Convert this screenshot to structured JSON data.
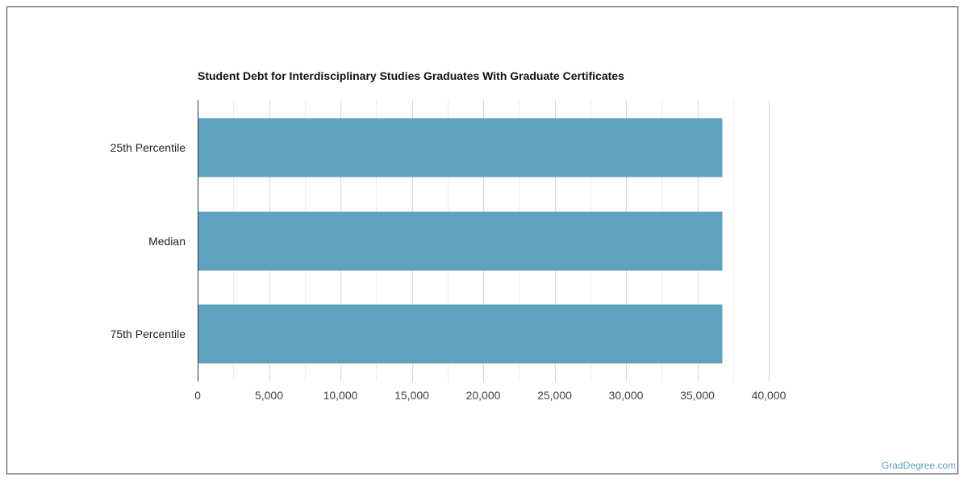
{
  "colors": {
    "bar": "#5ea2bf",
    "grid_major": "#d6d6d6",
    "grid_minor": "#ececec",
    "axis": "#333333",
    "watermark": "#5ea2bf"
  },
  "watermark": "GradDegree.com",
  "chart_data": {
    "type": "bar",
    "orientation": "horizontal",
    "title": "Student Debt for Interdisciplinary Studies Graduates With Graduate Certificates",
    "categories": [
      "25th Percentile",
      "Median",
      "75th Percentile"
    ],
    "values": [
      36750,
      36750,
      36750
    ],
    "xlim": [
      0,
      40000
    ],
    "x_ticks": [
      0,
      5000,
      10000,
      15000,
      20000,
      25000,
      30000,
      35000,
      40000
    ],
    "x_tick_labels": [
      "0",
      "5,000",
      "10,000",
      "15,000",
      "20,000",
      "25,000",
      "30,000",
      "35,000",
      "40,000"
    ],
    "xlabel": "",
    "ylabel": "",
    "grid": true,
    "legend": "none"
  }
}
